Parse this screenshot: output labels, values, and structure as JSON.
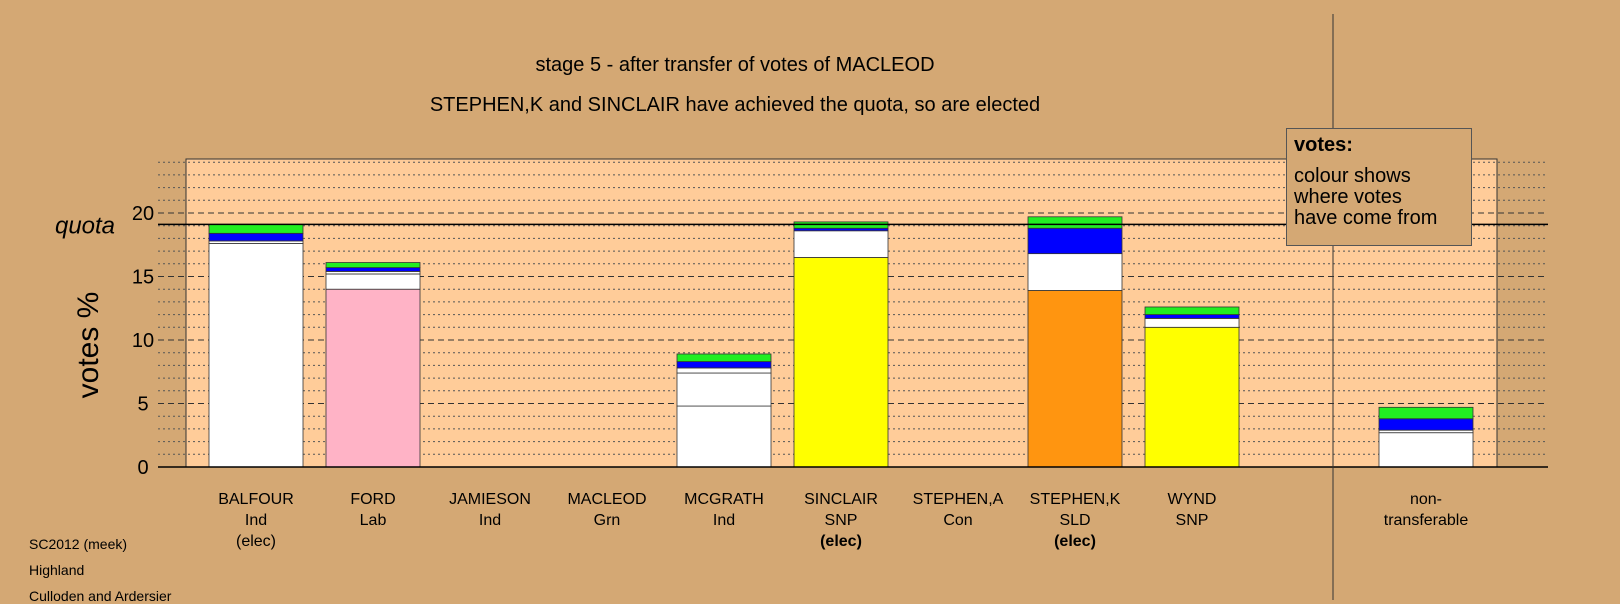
{
  "title": "stage 5 - after transfer of votes of MACLEOD",
  "subtitle": "STEPHEN,K and SINCLAIR have achieved the quota, so are elected",
  "footer": [
    "SC2012 (meek)",
    "Highland",
    "Culloden and Ardersier"
  ],
  "legend": {
    "title": "votes:",
    "lines": [
      "colour shows",
      "where votes",
      "have come from"
    ]
  },
  "colors": {
    "background": "#d4a874",
    "plot_area": "#ffcc99",
    "Ind": "#ffffff",
    "Lab": "#ffb3c6",
    "SNP": "#ffff00",
    "SLD": "#ff9510",
    "transfer_blue": "#0000ff",
    "transfer_green": "#22ee22"
  },
  "chart_data": {
    "type": "bar",
    "stacked": true,
    "ylabel": "votes %",
    "quota_label": "quota",
    "quota": 19.1,
    "ylim": [
      0,
      24
    ],
    "yticks": [
      0,
      5,
      10,
      15,
      20
    ],
    "grid": true,
    "categories": [
      {
        "name": "BALFOUR",
        "party": "Ind",
        "status": "(elec)",
        "status_bold": false
      },
      {
        "name": "FORD",
        "party": "Lab",
        "status": "",
        "status_bold": false
      },
      {
        "name": "JAMIESON",
        "party": "Ind",
        "status": "",
        "status_bold": false
      },
      {
        "name": "MACLEOD",
        "party": "Grn",
        "status": "",
        "status_bold": false
      },
      {
        "name": "MCGRATH",
        "party": "Ind",
        "status": "",
        "status_bold": false
      },
      {
        "name": "SINCLAIR",
        "party": "SNP",
        "status": "(elec)",
        "status_bold": true
      },
      {
        "name": "STEPHEN,A",
        "party": "Con",
        "status": "",
        "status_bold": false
      },
      {
        "name": "STEPHEN,K",
        "party": "SLD",
        "status": "(elec)",
        "status_bold": true
      },
      {
        "name": "WYND",
        "party": "SNP",
        "status": "",
        "status_bold": false
      }
    ],
    "nontransferable_label": [
      "non-",
      "transferable"
    ],
    "bars": [
      {
        "segments": [
          {
            "v": 17.6,
            "c": "Ind"
          },
          {
            "v": 0.2,
            "c": "Ind"
          },
          {
            "v": 0.6,
            "c": "transfer_blue"
          },
          {
            "v": 0.7,
            "c": "transfer_green"
          }
        ]
      },
      {
        "segments": [
          {
            "v": 14.0,
            "c": "Lab"
          },
          {
            "v": 1.2,
            "c": "Ind"
          },
          {
            "v": 0.2,
            "c": "Ind"
          },
          {
            "v": 0.3,
            "c": "transfer_blue"
          },
          {
            "v": 0.4,
            "c": "transfer_green"
          }
        ]
      },
      {
        "segments": []
      },
      {
        "segments": []
      },
      {
        "segments": [
          {
            "v": 4.8,
            "c": "Ind"
          },
          {
            "v": 2.6,
            "c": "Ind"
          },
          {
            "v": 0.4,
            "c": "Ind"
          },
          {
            "v": 0.5,
            "c": "transfer_blue"
          },
          {
            "v": 0.6,
            "c": "transfer_green"
          }
        ]
      },
      {
        "segments": [
          {
            "v": 16.5,
            "c": "SNP"
          },
          {
            "v": 2.1,
            "c": "Ind"
          },
          {
            "v": 0.2,
            "c": "transfer_blue"
          },
          {
            "v": 0.5,
            "c": "transfer_green"
          }
        ]
      },
      {
        "segments": []
      },
      {
        "segments": [
          {
            "v": 13.9,
            "c": "SLD"
          },
          {
            "v": 2.9,
            "c": "Ind"
          },
          {
            "v": 2.0,
            "c": "transfer_blue"
          },
          {
            "v": 0.9,
            "c": "transfer_green"
          }
        ]
      },
      {
        "segments": [
          {
            "v": 11.0,
            "c": "SNP"
          },
          {
            "v": 0.7,
            "c": "Ind"
          },
          {
            "v": 0.3,
            "c": "transfer_blue"
          },
          {
            "v": 0.6,
            "c": "transfer_green"
          }
        ]
      },
      {
        "segments": [
          {
            "v": 2.7,
            "c": "Ind"
          },
          {
            "v": 0.2,
            "c": "Ind"
          },
          {
            "v": 0.9,
            "c": "transfer_blue"
          },
          {
            "v": 0.9,
            "c": "transfer_green"
          }
        ]
      }
    ]
  }
}
